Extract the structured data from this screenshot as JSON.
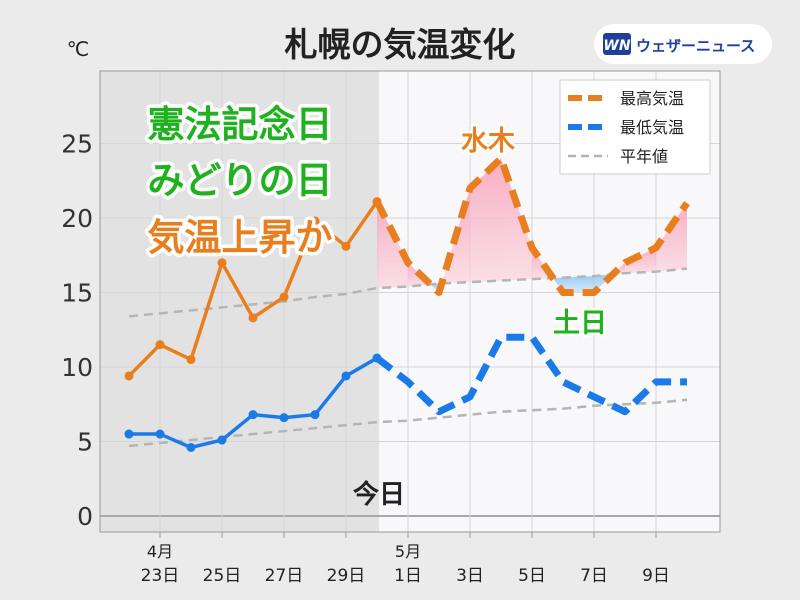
{
  "header": {
    "title": "札幌の気温変化",
    "unit": "℃",
    "logo_mark": "WN",
    "logo_text": "ウェザーニュース"
  },
  "headline": {
    "line1": "憲法記念日",
    "line2": "みどりの日",
    "line3": "気温上昇か"
  },
  "annotations": {
    "today": "今日",
    "wed_thu": "水木",
    "weekend": "土日"
  },
  "colors": {
    "max": "#e87e1e",
    "min": "#1a7ae8",
    "normal": "#b5b5b5",
    "green": "#1fb11f",
    "past_bg": "#e3e2e3",
    "future_bg": "#f8f7f9"
  },
  "chart_data": {
    "type": "line",
    "x": [
      "4/22",
      "4/23",
      "4/24",
      "4/25",
      "4/26",
      "4/27",
      "4/28",
      "4/29",
      "4/30",
      "5/1",
      "5/2",
      "5/3",
      "5/4",
      "5/5",
      "5/6",
      "5/7",
      "5/8",
      "5/9",
      "5/10"
    ],
    "x_ticks": [
      {
        "x": "4/23",
        "line1": "4月",
        "line2": "23日"
      },
      {
        "x": "4/25",
        "line1": "",
        "line2": "25日"
      },
      {
        "x": "4/27",
        "line1": "",
        "line2": "27日"
      },
      {
        "x": "4/29",
        "line1": "",
        "line2": "29日"
      },
      {
        "x": "5/1",
        "line1": "5月",
        "line2": "1日"
      },
      {
        "x": "5/3",
        "line1": "",
        "line2": "3日"
      },
      {
        "x": "5/5",
        "line1": "",
        "line2": "5日"
      },
      {
        "x": "5/7",
        "line1": "",
        "line2": "7日"
      },
      {
        "x": "5/9",
        "line1": "",
        "line2": "9日"
      }
    ],
    "today": "4/30",
    "ylim": [
      -1,
      30
    ],
    "yticks": [
      0,
      5,
      10,
      15,
      20,
      25
    ],
    "series": [
      {
        "name": "最高気温",
        "kind": "max",
        "values": [
          9.4,
          11.5,
          10.5,
          17.0,
          13.3,
          14.7,
          19.8,
          18.1,
          21.1,
          17.0,
          15.0,
          22.0,
          24.0,
          18.0,
          15.0,
          15.0,
          17.0,
          18.0,
          21.0
        ]
      },
      {
        "name": "最低気温",
        "kind": "min",
        "values": [
          5.5,
          5.5,
          4.6,
          5.1,
          6.8,
          6.6,
          6.8,
          9.4,
          10.6,
          9.0,
          7.0,
          8.0,
          12.0,
          12.0,
          9.0,
          8.0,
          7.0,
          9.0,
          9.0
        ]
      },
      {
        "name": "平年値",
        "kind": "normal_max",
        "values": [
          13.4,
          13.6,
          13.8,
          14.0,
          14.2,
          14.4,
          14.7,
          14.9,
          15.3,
          15.4,
          15.6,
          15.7,
          15.8,
          15.9,
          16.0,
          16.1,
          16.3,
          16.4,
          16.6
        ]
      },
      {
        "kind": "normal_min",
        "values": [
          4.7,
          4.9,
          5.1,
          5.3,
          5.5,
          5.7,
          5.9,
          6.1,
          6.3,
          6.4,
          6.6,
          6.8,
          7.0,
          7.1,
          7.2,
          7.4,
          7.5,
          7.6,
          7.8
        ]
      }
    ]
  }
}
